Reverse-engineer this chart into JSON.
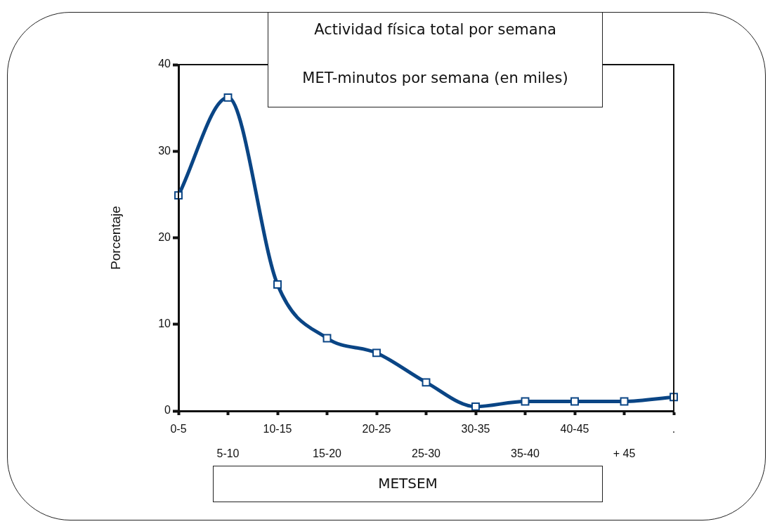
{
  "chart_data": {
    "type": "line",
    "title": "Actividad física total por semana",
    "subtitle": "MET-minutos por semana (en miles)",
    "xlabel": "METSEM",
    "ylabel": "Porcentaje",
    "categories": [
      "0-5",
      "5-10",
      "10-15",
      "15-20",
      "20-25",
      "25-30",
      "30-35",
      "35-40",
      "40-45",
      "+ 45",
      "."
    ],
    "series": [
      {
        "color": "#0a4585",
        "values": [
          24.9,
          36.2,
          14.6,
          8.4,
          6.7,
          3.3,
          0.5,
          1.1,
          1.1,
          1.1,
          1.6
        ]
      }
    ],
    "ylim": [
      0,
      40
    ],
    "yticks": [
      0,
      10,
      20,
      30,
      40
    ],
    "grid": false,
    "legend": false,
    "marker": "square",
    "line_style": "solid"
  }
}
